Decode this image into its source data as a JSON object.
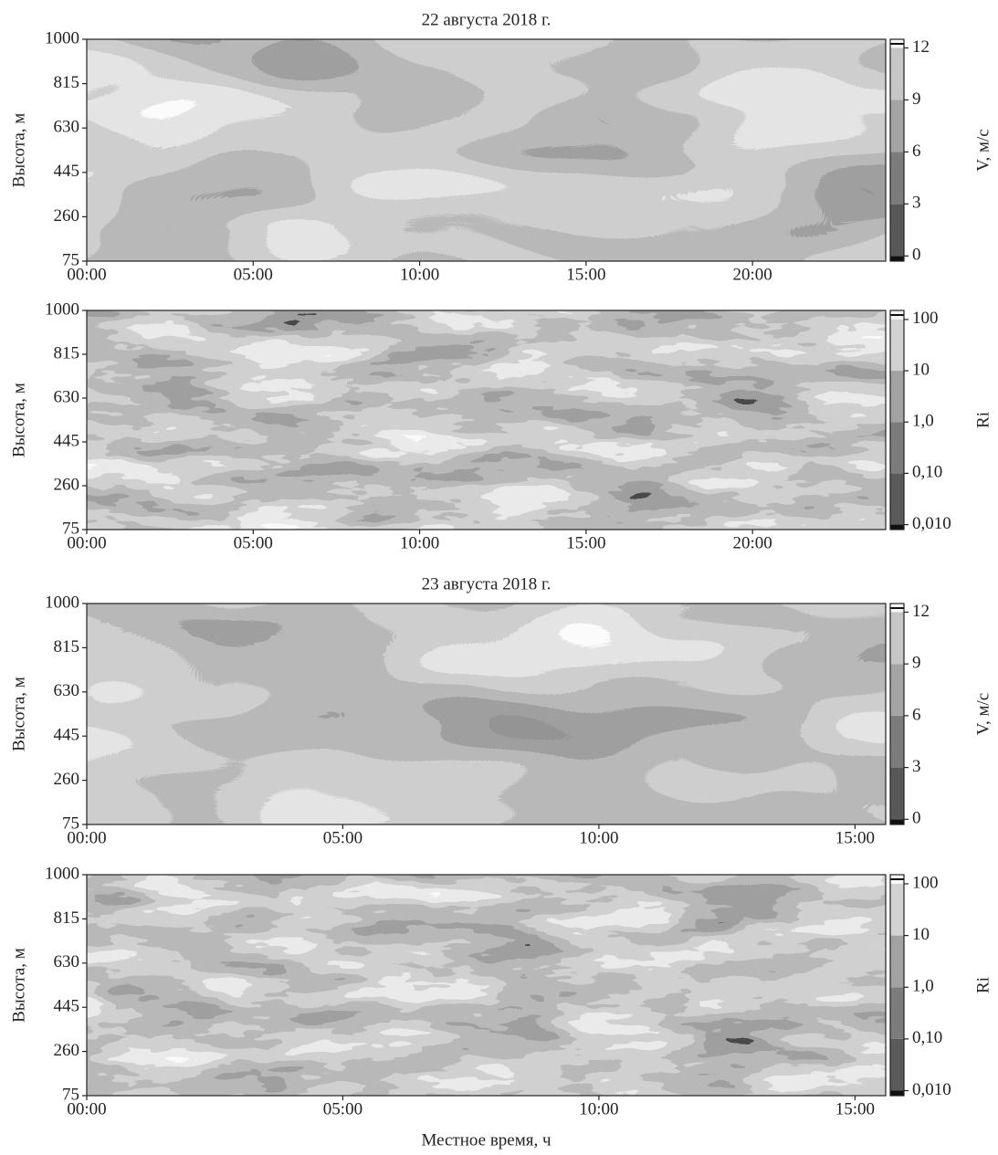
{
  "chart_data": [
    {
      "type": "contour",
      "title": "22 августа 2018 г.",
      "ylabel": "Высота, м",
      "xlim": [
        0,
        24
      ],
      "xticks": [
        {
          "value": 0,
          "label": "00:00"
        },
        {
          "value": 5,
          "label": "05:00"
        },
        {
          "value": 10,
          "label": "10:00"
        },
        {
          "value": 15,
          "label": "15:00"
        },
        {
          "value": 20,
          "label": "20:00"
        }
      ],
      "ylim": [
        75,
        1000
      ],
      "yticks": [
        75,
        260,
        445,
        630,
        815,
        1000
      ],
      "colorbar": {
        "label": "V, м/с",
        "log": false,
        "lim": [
          -0.3,
          12.5
        ],
        "ticks": [
          0,
          3,
          6,
          9,
          12
        ],
        "colors": [
          "#111111",
          "#585858",
          "#7c7c7c",
          "#a4a4a4",
          "#c6c6c6",
          "#f6f6f6"
        ]
      }
    },
    {
      "type": "contour",
      "ylabel": "Высота, м",
      "xlim": [
        0,
        24
      ],
      "xticks": [
        {
          "value": 0,
          "label": "00:00"
        },
        {
          "value": 5,
          "label": "05:00"
        },
        {
          "value": 10,
          "label": "10:00"
        },
        {
          "value": 15,
          "label": "15:00"
        },
        {
          "value": 20,
          "label": "20:00"
        }
      ],
      "ylim": [
        75,
        1000
      ],
      "yticks": [
        75,
        260,
        445,
        630,
        815,
        1000
      ],
      "colorbar": {
        "label": "Ri",
        "log": true,
        "lim": [
          0.008,
          150
        ],
        "ticks": [
          {
            "value": 0.01,
            "label": "0,010"
          },
          {
            "value": 0.1,
            "label": "0,10"
          },
          {
            "value": 1,
            "label": "1,0"
          },
          10,
          100
        ],
        "colors": [
          "#111111",
          "#5a5a5a",
          "#7c7c7c",
          "#a2a2a2",
          "#d2d2d2",
          "#f6f6f6"
        ]
      }
    },
    {
      "type": "contour",
      "title": "23 августа 2018 г.",
      "ylabel": "Высота, м",
      "xlim": [
        0,
        15.6
      ],
      "xticks": [
        {
          "value": 0,
          "label": "00:00"
        },
        {
          "value": 5,
          "label": "05:00"
        },
        {
          "value": 10,
          "label": "10:00"
        },
        {
          "value": 15,
          "label": "15:00"
        }
      ],
      "ylim": [
        75,
        1000
      ],
      "yticks": [
        75,
        260,
        445,
        630,
        815,
        1000
      ],
      "colorbar": {
        "label": "V, м/с",
        "log": false,
        "lim": [
          -0.3,
          12.5
        ],
        "ticks": [
          0,
          3,
          6,
          9,
          12
        ],
        "colors": [
          "#111111",
          "#585858",
          "#7c7c7c",
          "#a4a4a4",
          "#c6c6c6",
          "#f6f6f6"
        ]
      }
    },
    {
      "type": "contour",
      "ylabel": "Высота, м",
      "xlabel": "Местное время, ч",
      "xlim": [
        0,
        15.6
      ],
      "xticks": [
        {
          "value": 0,
          "label": "00:00"
        },
        {
          "value": 5,
          "label": "05:00"
        },
        {
          "value": 10,
          "label": "10:00"
        },
        {
          "value": 15,
          "label": "15:00"
        }
      ],
      "ylim": [
        75,
        1000
      ],
      "yticks": [
        75,
        260,
        445,
        630,
        815,
        1000
      ],
      "colorbar": {
        "label": "Ri",
        "log": true,
        "lim": [
          0.008,
          150
        ],
        "ticks": [
          {
            "value": 0.01,
            "label": "0,010"
          },
          {
            "value": 0.1,
            "label": "0,10"
          },
          {
            "value": 1,
            "label": "1,0"
          },
          10,
          100
        ],
        "colors": [
          "#111111",
          "#5a5a5a",
          "#7c7c7c",
          "#a2a2a2",
          "#d2d2d2",
          "#f6f6f6"
        ]
      }
    }
  ]
}
